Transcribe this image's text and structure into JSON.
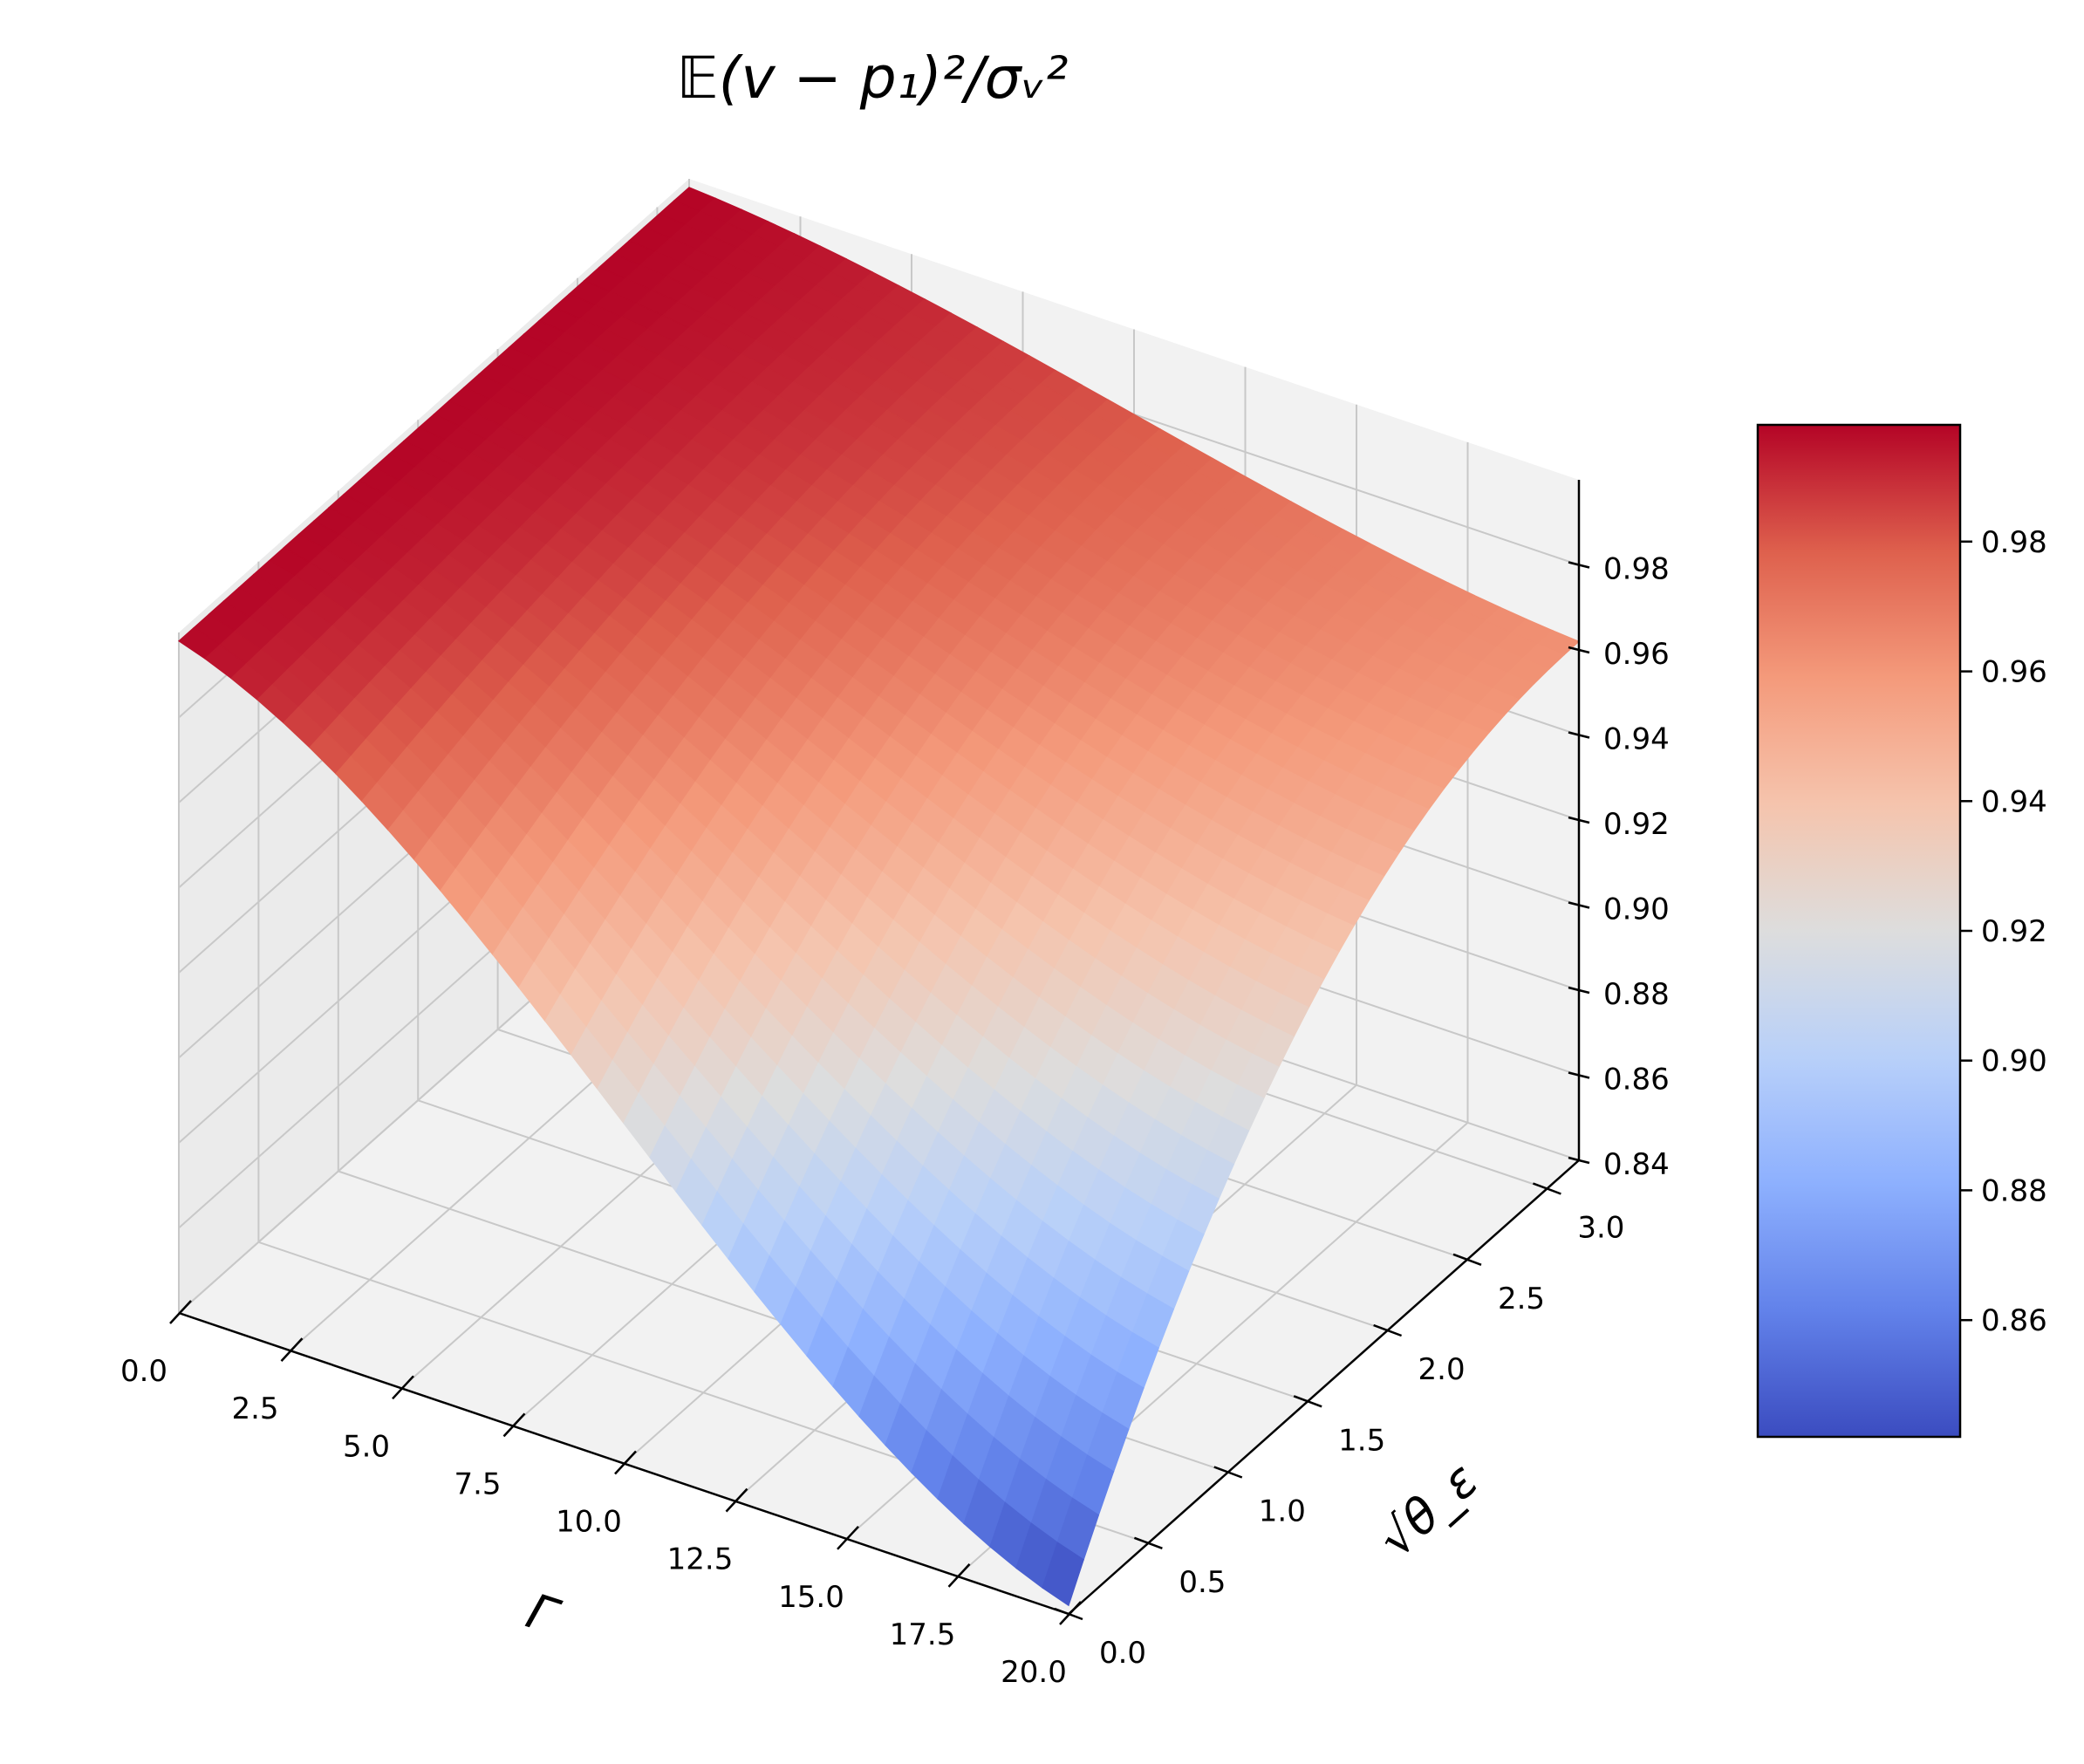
{
  "chart_data": {
    "type": "surface",
    "title": "𝔼(v − p₁)²/σᵥ²",
    "xlabel": "Γ",
    "ylabel": "√θ_ε",
    "zlabel": "",
    "x_range": [
      0,
      20
    ],
    "y_range": [
      0,
      3.2
    ],
    "z_range": [
      0.84,
      1.0
    ],
    "x_ticks": [
      "0.0",
      "2.5",
      "5.0",
      "7.5",
      "10.0",
      "12.5",
      "15.0",
      "17.5",
      "20.0"
    ],
    "y_ticks": [
      "0.0",
      "0.5",
      "1.0",
      "1.5",
      "2.0",
      "2.5",
      "3.0"
    ],
    "z_ticks": [
      "0.84",
      "0.86",
      "0.88",
      "0.90",
      "0.92",
      "0.94",
      "0.96",
      "0.98"
    ],
    "corner_values": [
      {
        "x": 0,
        "y": 0,
        "z": 0.998
      },
      {
        "x": 0,
        "y": 3.2,
        "z": 0.998
      },
      {
        "x": 20,
        "y": 3.2,
        "z": 0.962
      },
      {
        "x": 20,
        "y": 0,
        "z": 0.842
      }
    ],
    "grid": true,
    "colormap": "coolwarm",
    "colorbar": {
      "min": 0.842,
      "max": 0.998,
      "ticks": [
        "0.86",
        "0.88",
        "0.90",
        "0.92",
        "0.94",
        "0.96",
        "0.98"
      ],
      "placement": "right"
    }
  }
}
